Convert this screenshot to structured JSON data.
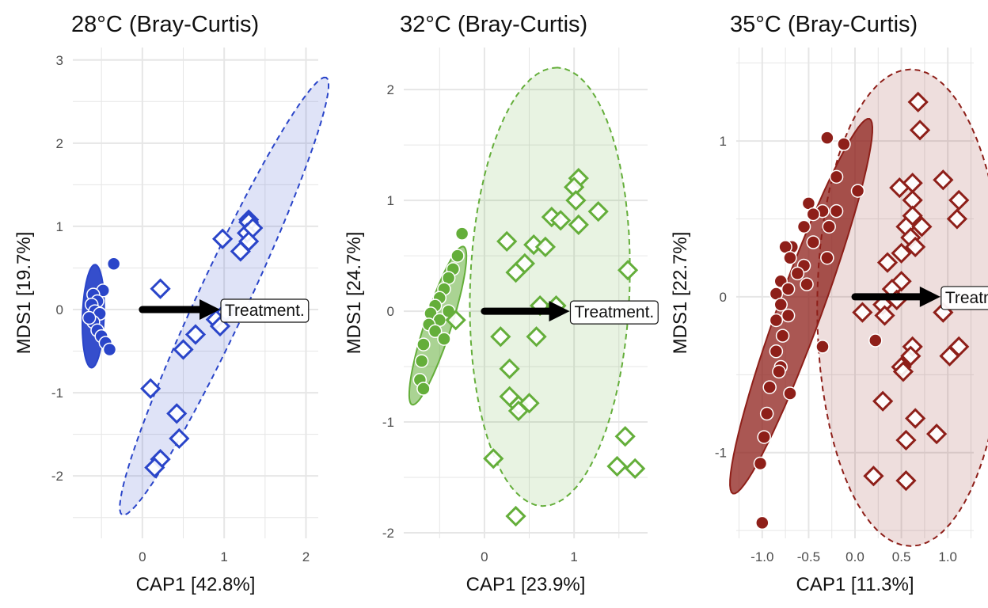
{
  "colors": {
    "panel1": "#2a45c9",
    "panel2": "#64ae3a",
    "panel3": "#8e1f19",
    "arrow": "#000000",
    "grid": "#e6e6e6"
  },
  "chart_data": [
    {
      "type": "scatter",
      "title": "28°C (Bray-Curtis)",
      "xlabel": "CAP1 [42.8%]",
      "ylabel": "MDS1 [19.7%]",
      "xlim": [
        -0.85,
        2.15
      ],
      "ylim": [
        -2.75,
        3.15
      ],
      "xticks": [
        0,
        1,
        2
      ],
      "xtick_labels": [
        "0",
        "1",
        "2"
      ],
      "yticks": [
        -2,
        -1,
        0,
        1,
        2,
        3
      ],
      "ytick_labels": [
        "-2",
        "-1",
        "0",
        "1",
        "2",
        "3"
      ],
      "grid": true,
      "arrow": {
        "label": "Treatment.",
        "x0": 0,
        "y0": 0,
        "x1": 0.95,
        "y1": 0
      },
      "ellipses": [
        {
          "group": "circle",
          "cx": -0.6,
          "cy": -0.08,
          "angle": 88,
          "semi_major": 0.62,
          "semi_minor": 0.13,
          "fill_opacity": 0.95,
          "dashed": false
        },
        {
          "group": "diamond",
          "cx": 1.0,
          "cy": 0.16,
          "angle": 65,
          "semi_major": 2.9,
          "semi_minor": 0.3,
          "fill_opacity": 0.15,
          "dashed": true
        }
      ],
      "series": [
        {
          "marker": "circle",
          "points": [
            [
              -0.35,
              0.55
            ],
            [
              -0.48,
              0.23
            ],
            [
              -0.6,
              0.18
            ],
            [
              -0.55,
              0.1
            ],
            [
              -0.62,
              0.06
            ],
            [
              -0.58,
              -0.02
            ],
            [
              -0.52,
              -0.05
            ],
            [
              -0.6,
              -0.15
            ],
            [
              -0.55,
              -0.25
            ],
            [
              -0.5,
              -0.32
            ],
            [
              -0.45,
              -0.4
            ],
            [
              -0.4,
              -0.48
            ],
            [
              -0.65,
              -0.1
            ]
          ]
        },
        {
          "marker": "diamond",
          "points": [
            [
              1.3,
              1.08
            ],
            [
              1.3,
              1.05
            ],
            [
              1.28,
              0.92
            ],
            [
              0.98,
              0.85
            ],
            [
              1.35,
              0.98
            ],
            [
              1.3,
              0.82
            ],
            [
              1.2,
              0.7
            ],
            [
              0.22,
              0.25
            ],
            [
              1.02,
              -0.03
            ],
            [
              0.9,
              -0.12
            ],
            [
              0.95,
              -0.2
            ],
            [
              0.65,
              -0.3
            ],
            [
              0.5,
              -0.48
            ],
            [
              0.1,
              -0.95
            ],
            [
              0.42,
              -1.25
            ],
            [
              0.45,
              -1.55
            ],
            [
              0.22,
              -1.8
            ],
            [
              0.15,
              -1.9
            ]
          ]
        }
      ]
    },
    {
      "type": "scatter",
      "title": "32°C (Bray-Curtis)",
      "xlabel": "CAP1 [23.9%]",
      "ylabel": "MDS1 [24.7%]",
      "xlim": [
        -0.9,
        1.82
      ],
      "ylim": [
        -2.05,
        2.38
      ],
      "xticks": [
        0,
        1
      ],
      "xtick_labels": [
        "0",
        "1"
      ],
      "yticks": [
        -2,
        -1,
        0,
        1,
        2
      ],
      "ytick_labels": [
        "-2",
        "-1",
        "0",
        "1",
        "2"
      ],
      "grid": true,
      "arrow": {
        "label": "Treatment.",
        "x0": 0,
        "y0": 0,
        "x1": 0.95,
        "y1": 0
      },
      "ellipses": [
        {
          "group": "circle",
          "cx": -0.52,
          "cy": -0.13,
          "angle": 72,
          "semi_major": 0.75,
          "semi_minor": 0.12,
          "fill_opacity": 0.55,
          "dashed": false
        },
        {
          "group": "diamond",
          "cx": 0.73,
          "cy": 0.22,
          "angle": 88,
          "semi_major": 1.98,
          "semi_minor": 0.72,
          "fill_opacity": 0.15,
          "dashed": true
        }
      ],
      "series": [
        {
          "marker": "circle",
          "points": [
            [
              -0.25,
              0.7
            ],
            [
              -0.3,
              0.5
            ],
            [
              -0.35,
              0.38
            ],
            [
              -0.4,
              0.3
            ],
            [
              -0.45,
              0.2
            ],
            [
              -0.5,
              0.12
            ],
            [
              -0.55,
              0.05
            ],
            [
              -0.6,
              -0.02
            ],
            [
              -0.5,
              -0.08
            ],
            [
              -0.62,
              -0.12
            ],
            [
              -0.55,
              -0.18
            ],
            [
              -0.45,
              -0.25
            ],
            [
              -0.68,
              -0.3
            ],
            [
              -0.7,
              -0.45
            ],
            [
              -0.72,
              -0.62
            ],
            [
              -0.68,
              -0.7
            ],
            [
              -0.4,
              0.0
            ]
          ]
        },
        {
          "marker": "diamond",
          "points": [
            [
              1.05,
              1.2
            ],
            [
              1.0,
              1.12
            ],
            [
              1.02,
              1.0
            ],
            [
              1.27,
              0.9
            ],
            [
              0.75,
              0.85
            ],
            [
              0.85,
              0.82
            ],
            [
              1.05,
              0.78
            ],
            [
              0.25,
              0.63
            ],
            [
              0.55,
              0.6
            ],
            [
              0.68,
              0.58
            ],
            [
              0.45,
              0.43
            ],
            [
              0.35,
              0.35
            ],
            [
              1.6,
              0.37
            ],
            [
              0.62,
              0.05
            ],
            [
              0.8,
              0.05
            ],
            [
              -0.32,
              -0.08
            ],
            [
              0.18,
              -0.23
            ],
            [
              0.58,
              -0.23
            ],
            [
              0.28,
              -0.52
            ],
            [
              0.28,
              -0.77
            ],
            [
              0.38,
              -0.85
            ],
            [
              0.5,
              -0.83
            ],
            [
              0.38,
              -0.9
            ],
            [
              1.57,
              -1.13
            ],
            [
              0.1,
              -1.33
            ],
            [
              1.48,
              -1.4
            ],
            [
              1.68,
              -1.42
            ],
            [
              0.35,
              -1.85
            ]
          ]
        }
      ]
    },
    {
      "type": "scatter",
      "title": "35°C (Bray-Curtis)",
      "xlabel": "CAP1 [11.3%]",
      "ylabel": "MDS1 [22.7%]",
      "xlim": [
        -1.28,
        1.28
      ],
      "ylim": [
        -1.55,
        1.6
      ],
      "xticks": [
        -1.0,
        -0.5,
        0.0,
        0.5,
        1.0
      ],
      "xtick_labels": [
        "-1.0",
        "-0.5",
        "0.0",
        "0.5",
        "1.0"
      ],
      "yticks": [
        -1,
        0,
        1
      ],
      "ytick_labels": [
        "-1",
        "0",
        "1"
      ],
      "grid": true,
      "arrow": {
        "label": "Treatment.",
        "x0": 0,
        "y0": 0,
        "x1": 0.92,
        "y1": 0
      },
      "ellipses": [
        {
          "group": "circle",
          "cx": -0.58,
          "cy": -0.06,
          "angle": 70,
          "semi_major": 1.28,
          "semi_minor": 0.14,
          "fill_opacity": 0.75,
          "dashed": false
        },
        {
          "group": "diamond",
          "cx": 0.6,
          "cy": -0.07,
          "angle": 90,
          "semi_major": 1.53,
          "semi_minor": 0.6,
          "fill_opacity": 0.15,
          "dashed": true
        }
      ],
      "series": [
        {
          "marker": "circle",
          "points": [
            [
              -0.3,
              1.02
            ],
            [
              -0.12,
              0.98
            ],
            [
              -0.2,
              0.77
            ],
            [
              0.03,
              0.68
            ],
            [
              -0.5,
              0.6
            ],
            [
              -0.35,
              0.55
            ],
            [
              -0.45,
              0.53
            ],
            [
              -0.2,
              0.55
            ],
            [
              -0.55,
              0.45
            ],
            [
              -0.28,
              0.45
            ],
            [
              -0.68,
              0.32
            ],
            [
              -0.75,
              0.32
            ],
            [
              -0.7,
              0.25
            ],
            [
              -0.45,
              0.35
            ],
            [
              -0.3,
              0.25
            ],
            [
              -0.55,
              0.2
            ],
            [
              -0.62,
              0.15
            ],
            [
              -0.8,
              0.1
            ],
            [
              -0.52,
              0.08
            ],
            [
              -0.72,
              0.05
            ],
            [
              -0.85,
              0.02
            ],
            [
              -0.8,
              -0.05
            ],
            [
              -0.72,
              -0.12
            ],
            [
              -0.85,
              -0.15
            ],
            [
              -0.78,
              -0.25
            ],
            [
              -0.85,
              -0.35
            ],
            [
              -0.35,
              -0.32
            ],
            [
              0.22,
              -0.28
            ],
            [
              -0.8,
              -0.45
            ],
            [
              -0.82,
              -0.48
            ],
            [
              -0.7,
              -0.62
            ],
            [
              -0.92,
              -0.58
            ],
            [
              -0.95,
              -0.75
            ],
            [
              -0.98,
              -0.9
            ],
            [
              -1.02,
              -1.07
            ],
            [
              -1.0,
              -1.45
            ]
          ]
        },
        {
          "marker": "diamond",
          "points": [
            [
              0.68,
              1.25
            ],
            [
              0.7,
              1.07
            ],
            [
              0.95,
              0.75
            ],
            [
              0.62,
              0.73
            ],
            [
              0.48,
              0.7
            ],
            [
              1.12,
              0.62
            ],
            [
              0.62,
              0.62
            ],
            [
              0.62,
              0.52
            ],
            [
              0.55,
              0.45
            ],
            [
              0.72,
              0.45
            ],
            [
              1.1,
              0.5
            ],
            [
              0.6,
              0.38
            ],
            [
              0.65,
              0.32
            ],
            [
              0.5,
              0.28
            ],
            [
              0.35,
              0.22
            ],
            [
              0.5,
              0.1
            ],
            [
              0.4,
              0.05
            ],
            [
              0.45,
              -0.02
            ],
            [
              0.3,
              -0.05
            ],
            [
              0.08,
              -0.1
            ],
            [
              0.32,
              -0.12
            ],
            [
              0.95,
              -0.1
            ],
            [
              0.62,
              -0.32
            ],
            [
              1.12,
              -0.32
            ],
            [
              0.6,
              -0.38
            ],
            [
              1.02,
              -0.38
            ],
            [
              0.5,
              -0.45
            ],
            [
              0.52,
              -0.48
            ],
            [
              0.3,
              -0.67
            ],
            [
              0.65,
              -0.78
            ],
            [
              0.88,
              -0.88
            ],
            [
              0.55,
              -0.92
            ],
            [
              0.2,
              -1.15
            ],
            [
              0.55,
              -1.18
            ]
          ]
        }
      ]
    }
  ]
}
